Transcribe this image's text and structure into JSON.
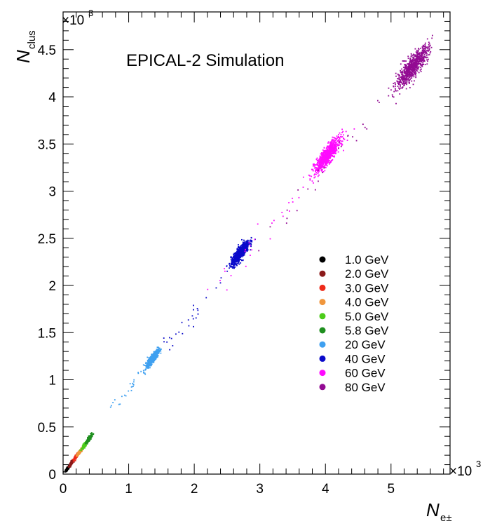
{
  "chart_data": {
    "type": "scatter",
    "title": "EPICAL-2 Simulation",
    "xlabel": "N",
    "xlabel_sub": "e±",
    "ylabel": "N",
    "ylabel_sub": "clus",
    "x_multiplier": "×10",
    "x_multiplier_exp": "3",
    "y_multiplier": "×10",
    "y_multiplier_exp": "3",
    "xlim": [
      0,
      5.9
    ],
    "ylim": [
      0,
      4.9
    ],
    "x_ticks": [
      "0",
      "1",
      "2",
      "3",
      "4",
      "5"
    ],
    "y_ticks": [
      "0",
      "0.5",
      "1",
      "1.5",
      "2",
      "2.5",
      "3",
      "3.5",
      "4",
      "4.5"
    ],
    "x_tick_values": [
      0,
      1,
      2,
      3,
      4,
      5
    ],
    "y_tick_values": [
      0,
      0.5,
      1,
      1.5,
      2,
      2.5,
      3,
      3.5,
      4,
      4.5
    ],
    "grid": false,
    "legend_position": "right-middle",
    "series": [
      {
        "name": "1.0 GeV",
        "color": "#000000",
        "x": 0.07,
        "y": 0.06
      },
      {
        "name": "2.0 GeV",
        "color": "#8b1a1a",
        "x": 0.13,
        "y": 0.12
      },
      {
        "name": "3.0 GeV",
        "color": "#ee2a1a",
        "x": 0.2,
        "y": 0.19
      },
      {
        "name": "4.0 GeV",
        "color": "#f0963c",
        "x": 0.26,
        "y": 0.24
      },
      {
        "name": "5.0 GeV",
        "color": "#4ccc1a",
        "x": 0.34,
        "y": 0.32
      },
      {
        "name": "5.8 GeV",
        "color": "#1f8f1f",
        "x": 0.4,
        "y": 0.38
      },
      {
        "name": "20 GeV",
        "color": "#3fa0f0",
        "x": 1.37,
        "y": 1.23
      },
      {
        "name": "40 GeV",
        "color": "#0a0aca",
        "x": 2.7,
        "y": 2.34
      },
      {
        "name": "60 GeV",
        "color": "#ff0aff",
        "x": 4.03,
        "y": 3.38
      },
      {
        "name": "80 GeV",
        "color": "#930b93",
        "x": 5.33,
        "y": 4.32
      }
    ]
  }
}
